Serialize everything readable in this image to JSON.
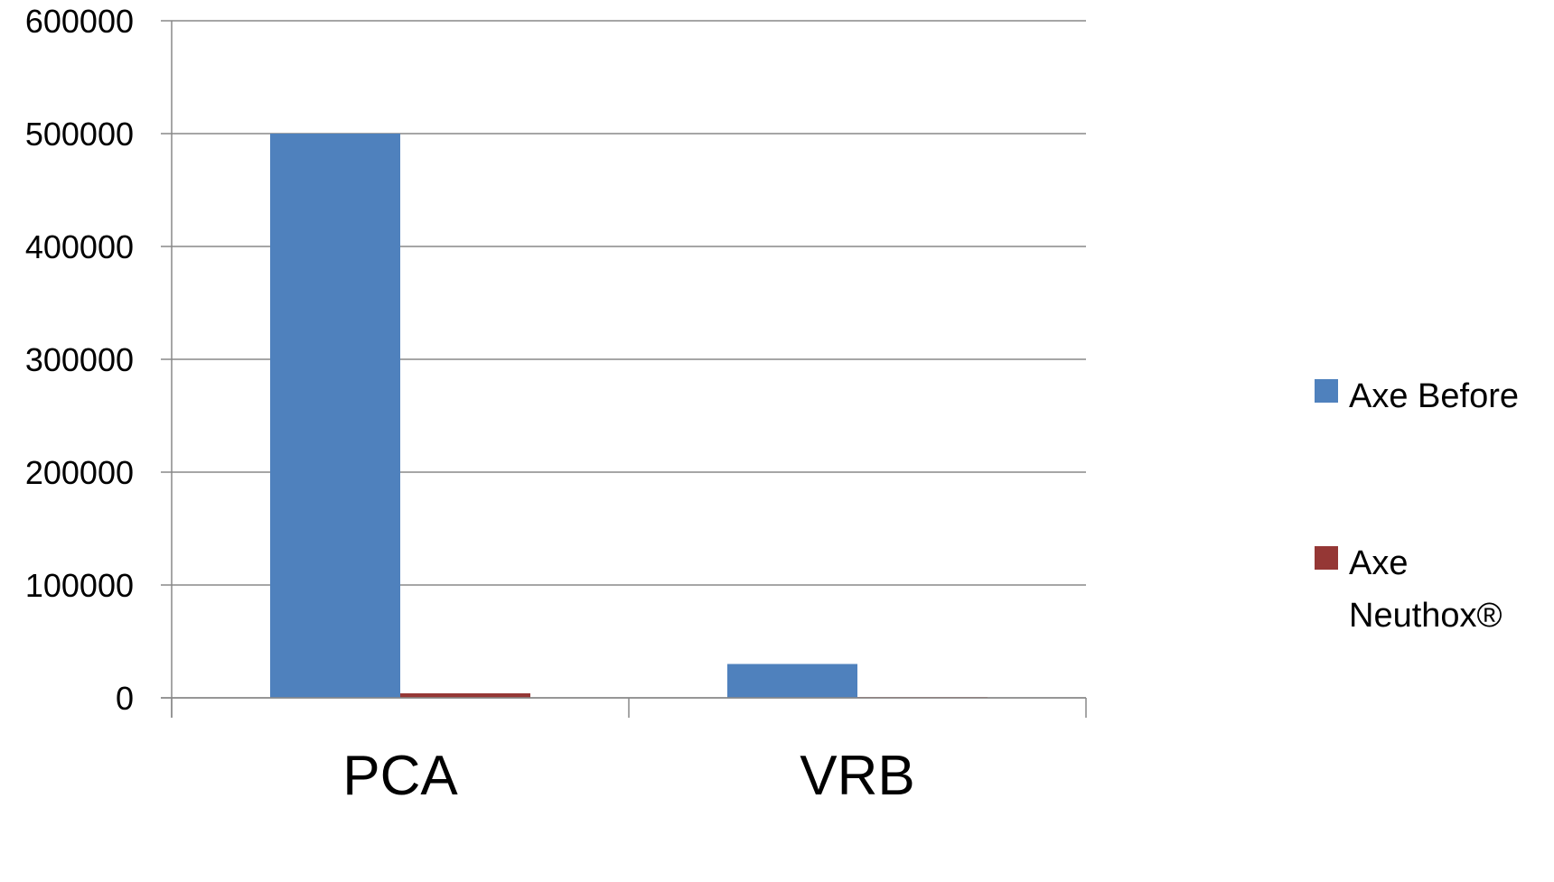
{
  "chart_data": {
    "type": "bar",
    "categories": [
      "PCA",
      "VRB"
    ],
    "series": [
      {
        "name": "Axe Before",
        "color": "#4F81BD",
        "values": [
          500000,
          30000
        ]
      },
      {
        "name": "Axe Neuthox®",
        "color": "#953735",
        "values": [
          4000,
          400
        ]
      }
    ],
    "ylim": [
      0,
      600000
    ],
    "yticks": [
      0,
      100000,
      200000,
      300000,
      400000,
      500000,
      600000
    ],
    "ytick_labels": [
      "0",
      "100000",
      "200000",
      "300000",
      "400000",
      "500000",
      "600000"
    ],
    "grid": true,
    "gridline_color": "#888888",
    "legend_position": "right"
  }
}
